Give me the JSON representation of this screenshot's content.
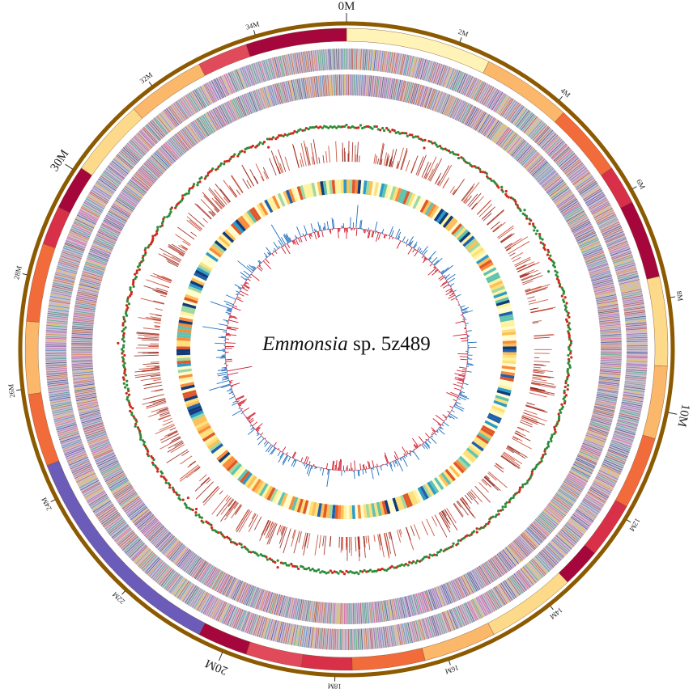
{
  "title": {
    "genus": "Emmonsia",
    "rest": "sp. 5z489"
  },
  "genome_size_mb": 35.6,
  "colors": {
    "outer_ring": "#8c5a00",
    "gc_skew_positive": "#1f6fbf",
    "gc_skew_negative": "#d11a2a",
    "snp_dot_a": "#2e8b3a",
    "snp_dot_b": "#cc2a1a",
    "repeat_line": "#c43a22"
  },
  "tracks": [
    "karyotype_scaffolds",
    "genes_forward_strand",
    "genes_reverse_strand",
    "snp_density",
    "repeats",
    "gene_expression_heatmap",
    "gc_skew"
  ],
  "tick_labels": [
    {
      "pos_mb": 0,
      "label": "0M",
      "major": true
    },
    {
      "pos_mb": 2,
      "label": "2M",
      "major": false
    },
    {
      "pos_mb": 4,
      "label": "4M",
      "major": false
    },
    {
      "pos_mb": 6,
      "label": "6M",
      "major": false
    },
    {
      "pos_mb": 8,
      "label": "8M",
      "major": false
    },
    {
      "pos_mb": 10,
      "label": "10M",
      "major": true
    },
    {
      "pos_mb": 12,
      "label": "12M",
      "major": false
    },
    {
      "pos_mb": 14,
      "label": "14M",
      "major": false
    },
    {
      "pos_mb": 16,
      "label": "16M",
      "major": false
    },
    {
      "pos_mb": 18,
      "label": "18M",
      "major": false
    },
    {
      "pos_mb": 20,
      "label": "20M",
      "major": true
    },
    {
      "pos_mb": 22,
      "label": "22M",
      "major": false
    },
    {
      "pos_mb": 24,
      "label": "24M",
      "major": false
    },
    {
      "pos_mb": 26,
      "label": "26M",
      "major": false
    },
    {
      "pos_mb": 28,
      "label": "28M",
      "major": false
    },
    {
      "pos_mb": 30,
      "label": "30M",
      "major": true
    },
    {
      "pos_mb": 32,
      "label": "32M",
      "major": false
    },
    {
      "pos_mb": 34,
      "label": "34M",
      "major": false
    }
  ],
  "scaffolds": [
    {
      "start_mb": 0.0,
      "end_mb": 2.6,
      "color": "#fff3b8"
    },
    {
      "start_mb": 2.6,
      "end_mb": 4.2,
      "color": "#fbb86a"
    },
    {
      "start_mb": 4.2,
      "end_mb": 5.5,
      "color": "#f26b3a"
    },
    {
      "start_mb": 5.5,
      "end_mb": 6.2,
      "color": "#d73048"
    },
    {
      "start_mb": 6.2,
      "end_mb": 7.6,
      "color": "#a5063c"
    },
    {
      "start_mb": 7.6,
      "end_mb": 9.2,
      "color": "#fdd98a"
    },
    {
      "start_mb": 9.2,
      "end_mb": 10.5,
      "color": "#fbb86a"
    },
    {
      "start_mb": 10.5,
      "end_mb": 11.8,
      "color": "#f26b3a"
    },
    {
      "start_mb": 11.8,
      "end_mb": 12.8,
      "color": "#d73048"
    },
    {
      "start_mb": 12.8,
      "end_mb": 13.5,
      "color": "#a5063c"
    },
    {
      "start_mb": 13.5,
      "end_mb": 15.1,
      "color": "#fdd98a"
    },
    {
      "start_mb": 15.1,
      "end_mb": 16.4,
      "color": "#fbb86a"
    },
    {
      "start_mb": 16.4,
      "end_mb": 17.7,
      "color": "#f26b3a"
    },
    {
      "start_mb": 17.7,
      "end_mb": 18.6,
      "color": "#d73048"
    },
    {
      "start_mb": 18.6,
      "end_mb": 19.6,
      "color": "#e04a5a"
    },
    {
      "start_mb": 19.6,
      "end_mb": 20.5,
      "color": "#a5063c"
    },
    {
      "start_mb": 20.5,
      "end_mb": 24.6,
      "color": "#6a5cb8"
    },
    {
      "start_mb": 24.6,
      "end_mb": 25.9,
      "color": "#f26b3a"
    },
    {
      "start_mb": 25.9,
      "end_mb": 27.2,
      "color": "#fbb86a"
    },
    {
      "start_mb": 27.2,
      "end_mb": 28.6,
      "color": "#f26b3a"
    },
    {
      "start_mb": 28.6,
      "end_mb": 29.3,
      "color": "#d73048"
    },
    {
      "start_mb": 29.3,
      "end_mb": 30.1,
      "color": "#a5063c"
    },
    {
      "start_mb": 30.1,
      "end_mb": 31.5,
      "color": "#fdd98a"
    },
    {
      "start_mb": 31.5,
      "end_mb": 32.9,
      "color": "#fbb86a"
    },
    {
      "start_mb": 32.9,
      "end_mb": 33.8,
      "color": "#e04a5a"
    },
    {
      "start_mb": 33.8,
      "end_mb": 35.6,
      "color": "#a5063c"
    }
  ],
  "gene_palette": [
    "#8e44ad",
    "#c0392b",
    "#e67e22",
    "#2e86c1",
    "#27ae60",
    "#f1c40f",
    "#d35400",
    "#7f8c8d",
    "#16a085",
    "#e84393",
    "#34495e",
    "#9b59b6",
    "#1f3a93",
    "#b03a2e"
  ],
  "heatmap_palette": [
    "#fffdd0",
    "#fef3a0",
    "#fde07a",
    "#fdbf56",
    "#f98b3c",
    "#e0572a",
    "#9fd8a0",
    "#5fc3b0",
    "#2b9bc9",
    "#1f5fae",
    "#123a78"
  ]
}
